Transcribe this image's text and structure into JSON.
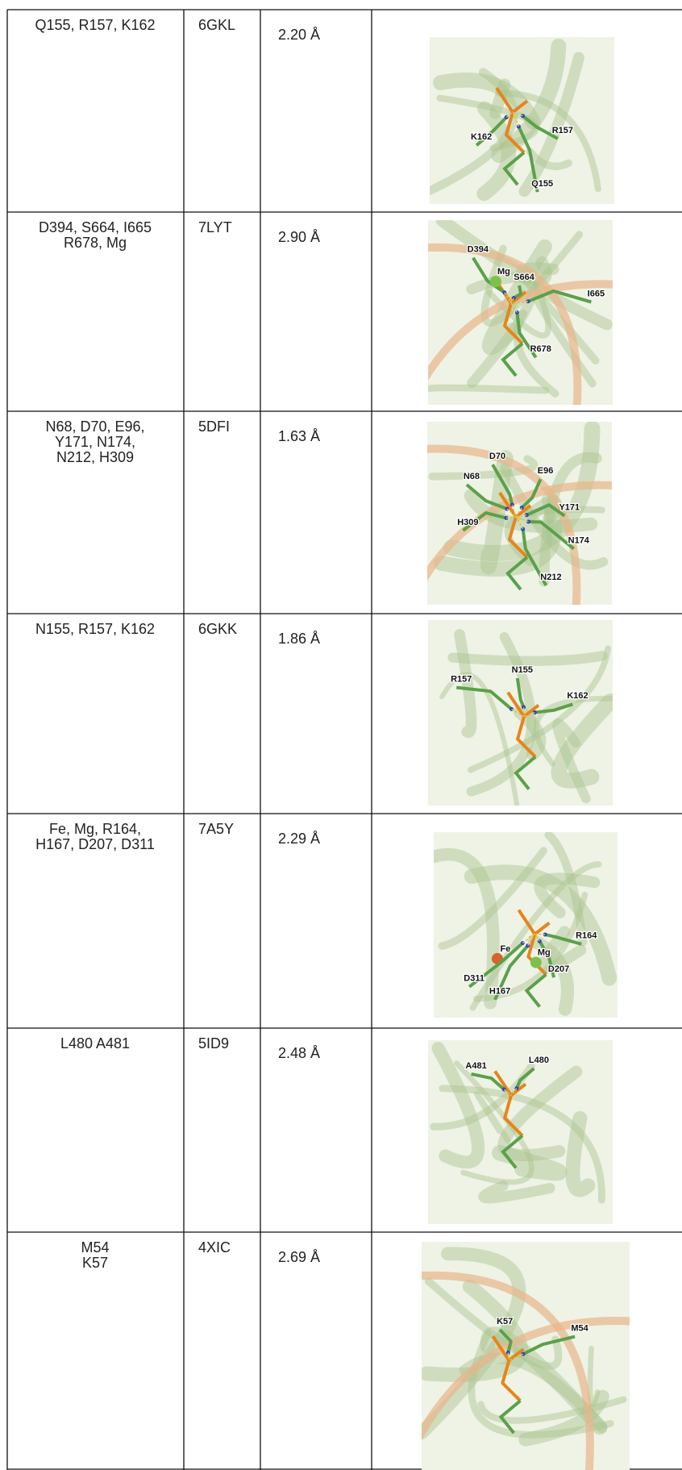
{
  "table": {
    "rows": [
      {
        "residues": [
          "Q155, R157, K162"
        ],
        "pdb": "6GKL",
        "distance": "2.20 Å",
        "labels": [
          "K162",
          "R157",
          "Q155"
        ]
      },
      {
        "residues": [
          "D394, S664, I665",
          "R678, Mg"
        ],
        "pdb": "7LYT",
        "distance": "2.90 Å",
        "labels": [
          "D394",
          "Mg",
          "S664",
          "I665",
          "R678"
        ]
      },
      {
        "residues": [
          "N68, D70, E96,",
          "Y171, N174,",
          "N212, H309"
        ],
        "pdb": "5DFI",
        "distance": "1.63 Å",
        "labels": [
          "D70",
          "N68",
          "E96",
          "Y171",
          "H309",
          "N174",
          "N212"
        ]
      },
      {
        "residues": [
          "N155, R157, K162"
        ],
        "pdb": "6GKK",
        "distance": "1.86 Å",
        "labels": [
          "R157",
          "N155",
          "K162"
        ]
      },
      {
        "residues": [
          "Fe, Mg, R164,",
          "H167, D207, D311"
        ],
        "pdb": "7A5Y",
        "distance": "2.29 Å",
        "labels": [
          "R164",
          "Mg",
          "Fe",
          "D207",
          "D311",
          "H167"
        ]
      },
      {
        "residues": [
          "L480 A481"
        ],
        "pdb": "5ID9",
        "distance": "2.48 Å",
        "labels": [
          "A481",
          "L480"
        ]
      },
      {
        "residues": [
          "M54",
          "K57"
        ],
        "pdb": "4XIC",
        "distance": "2.69 Å",
        "labels": [
          "K57",
          "M54"
        ]
      }
    ]
  }
}
